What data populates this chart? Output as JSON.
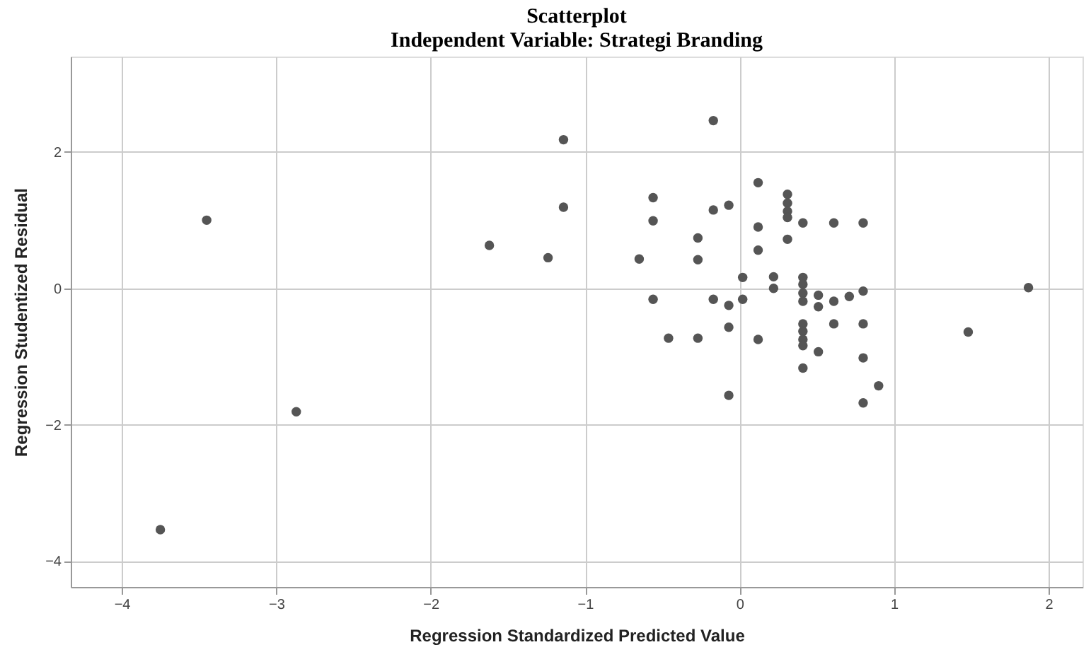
{
  "chart_data": {
    "type": "scatter",
    "title": "Scatterplot",
    "subtitle": "Independent Variable: Strategi Branding",
    "xlabel": "Regression Standardized Predicted Value",
    "ylabel": "Regression Studentized Residual",
    "xlim": [
      -4.33,
      2.22
    ],
    "ylim": [
      -4.38,
      3.4
    ],
    "xticks": [
      -4,
      -3,
      -2,
      -1,
      0,
      1,
      2
    ],
    "yticks": [
      -4,
      -2,
      0,
      2
    ],
    "grid": true,
    "marker": "circle",
    "series": [
      {
        "color": "#555555",
        "x": [
          -1.14,
          -1.14,
          -1.24,
          -0.17,
          0.12,
          -0.56,
          -0.56,
          -0.17,
          -0.07,
          0.31,
          0.31,
          0.31,
          0.31,
          0.41,
          0.61,
          0.8,
          0.12,
          0.31,
          -0.27,
          -0.65,
          -0.27,
          0.12,
          0.02,
          0.22,
          0.22,
          0.41,
          0.41,
          0.41,
          0.41,
          0.51,
          0.51,
          0.61,
          0.71,
          0.8,
          -0.56,
          -0.17,
          -0.07,
          0.02,
          -0.07,
          -0.46,
          -0.27,
          0.12,
          0.41,
          0.41,
          0.41,
          0.41,
          0.61,
          0.8,
          0.51,
          0.41,
          0.8,
          0.9,
          0.8,
          -0.07,
          1.87,
          1.48,
          -3.45,
          -1.62,
          -2.87,
          -3.75
        ],
        "values": [
          2.18,
          1.19,
          0.45,
          2.46,
          1.55,
          1.33,
          0.99,
          1.15,
          1.22,
          1.38,
          1.25,
          1.13,
          1.04,
          0.96,
          0.96,
          0.96,
          0.9,
          0.72,
          0.74,
          0.43,
          0.42,
          0.56,
          0.16,
          0.17,
          0.0,
          0.16,
          0.06,
          -0.07,
          -0.19,
          -0.1,
          -0.27,
          -0.19,
          -0.12,
          -0.04,
          -0.16,
          -0.16,
          -0.25,
          -0.16,
          -0.57,
          -0.73,
          -0.73,
          -0.75,
          -0.52,
          -0.63,
          -0.75,
          -0.84,
          -0.52,
          -0.52,
          -0.93,
          -1.17,
          -1.02,
          -1.43,
          -1.68,
          -1.57,
          0.01,
          -0.64,
          1.0,
          0.63,
          -1.81,
          -3.54
        ]
      }
    ]
  }
}
